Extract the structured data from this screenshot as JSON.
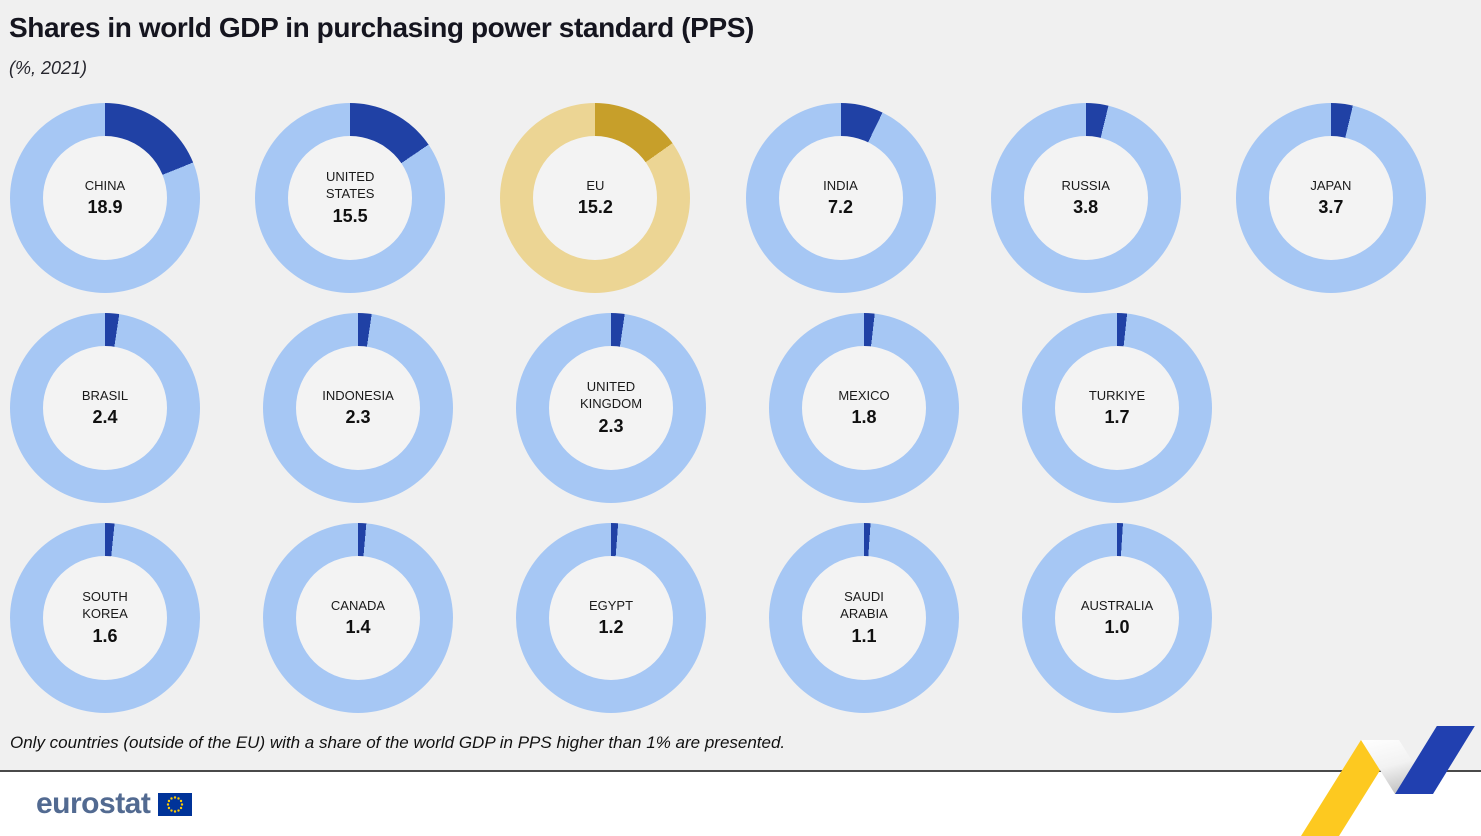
{
  "header": {
    "title": "Shares in world GDP in purchasing power standard (PPS)",
    "subtitle": "(%, 2021)"
  },
  "chart_data": {
    "type": "pie",
    "variant": "donut-grid",
    "unit": "%",
    "year": "2021",
    "title": "Shares in world GDP in purchasing power standard (PPS)",
    "items": [
      {
        "label": "CHINA",
        "value": 18.9,
        "display": "18.9",
        "eu": false
      },
      {
        "label": "UNITED STATES",
        "value": 15.5,
        "display": "15.5",
        "eu": false
      },
      {
        "label": "EU",
        "value": 15.2,
        "display": "15.2",
        "eu": true
      },
      {
        "label": "INDIA",
        "value": 7.2,
        "display": "7.2",
        "eu": false
      },
      {
        "label": "RUSSIA",
        "value": 3.8,
        "display": "3.8",
        "eu": false
      },
      {
        "label": "JAPAN",
        "value": 3.7,
        "display": "3.7",
        "eu": false
      },
      {
        "label": "BRASIL",
        "value": 2.4,
        "display": "2.4",
        "eu": false
      },
      {
        "label": "INDONESIA",
        "value": 2.3,
        "display": "2.3",
        "eu": false
      },
      {
        "label": "UNITED KINGDOM",
        "value": 2.3,
        "display": "2.3",
        "eu": false
      },
      {
        "label": "MEXICO",
        "value": 1.8,
        "display": "1.8",
        "eu": false
      },
      {
        "label": "TURKIYE",
        "value": 1.7,
        "display": "1.7",
        "eu": false
      },
      {
        "label": "SOUTH KOREA",
        "value": 1.6,
        "display": "1.6",
        "eu": false
      },
      {
        "label": "CANADA",
        "value": 1.4,
        "display": "1.4",
        "eu": false
      },
      {
        "label": "EGYPT",
        "value": 1.2,
        "display": "1.2",
        "eu": false
      },
      {
        "label": "SAUDI ARABIA",
        "value": 1.1,
        "display": "1.1",
        "eu": false
      },
      {
        "label": "AUSTRALIA",
        "value": 1.0,
        "display": "1.0",
        "eu": false
      }
    ],
    "layout": {
      "rows": [
        [
          0,
          1,
          2,
          3,
          4,
          5
        ],
        [
          6,
          7,
          8,
          9,
          10
        ],
        [
          11,
          12,
          13,
          14,
          15
        ]
      ],
      "segment_start": "top",
      "segment_direction": "clockwise"
    },
    "colors": {
      "ring": "#a6c7f4",
      "segment": "#2041a5",
      "eu_ring": "#ecd594",
      "eu_segment": "#c79f2a"
    }
  },
  "footer": {
    "note": "Only countries (outside of the EU) with a share of the world GDP in PPS higher than 1% are presented.",
    "logo_text": "eurostat"
  }
}
